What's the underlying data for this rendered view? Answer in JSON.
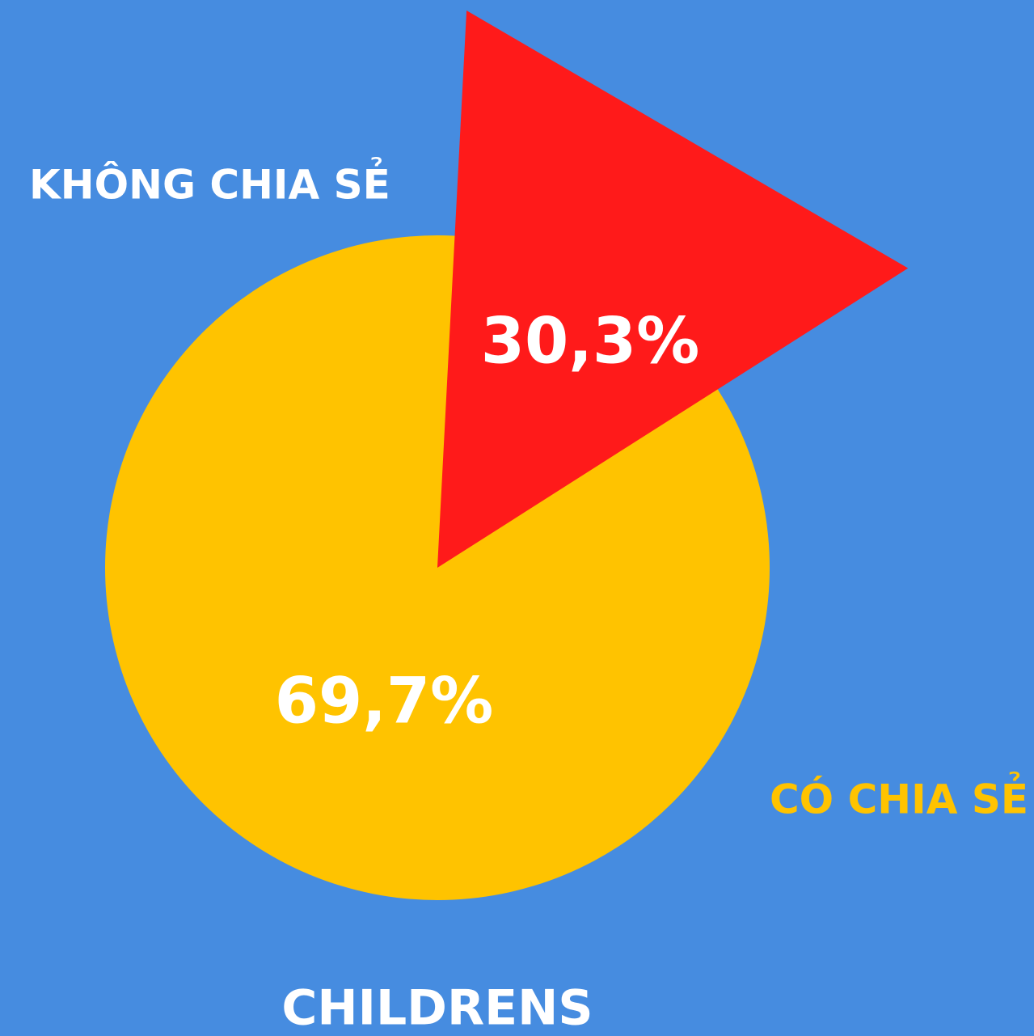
{
  "chart_data": {
    "type": "pie",
    "title": "CHILDRENS",
    "categories": [
      "KHÔNG CHIA SẺ",
      "CÓ CHIA SẺ"
    ],
    "values": [
      30.3,
      69.7
    ],
    "value_labels": [
      "30,3%",
      "69,7%"
    ],
    "colors": [
      "#ff1a1a",
      "#ffc300"
    ]
  }
}
